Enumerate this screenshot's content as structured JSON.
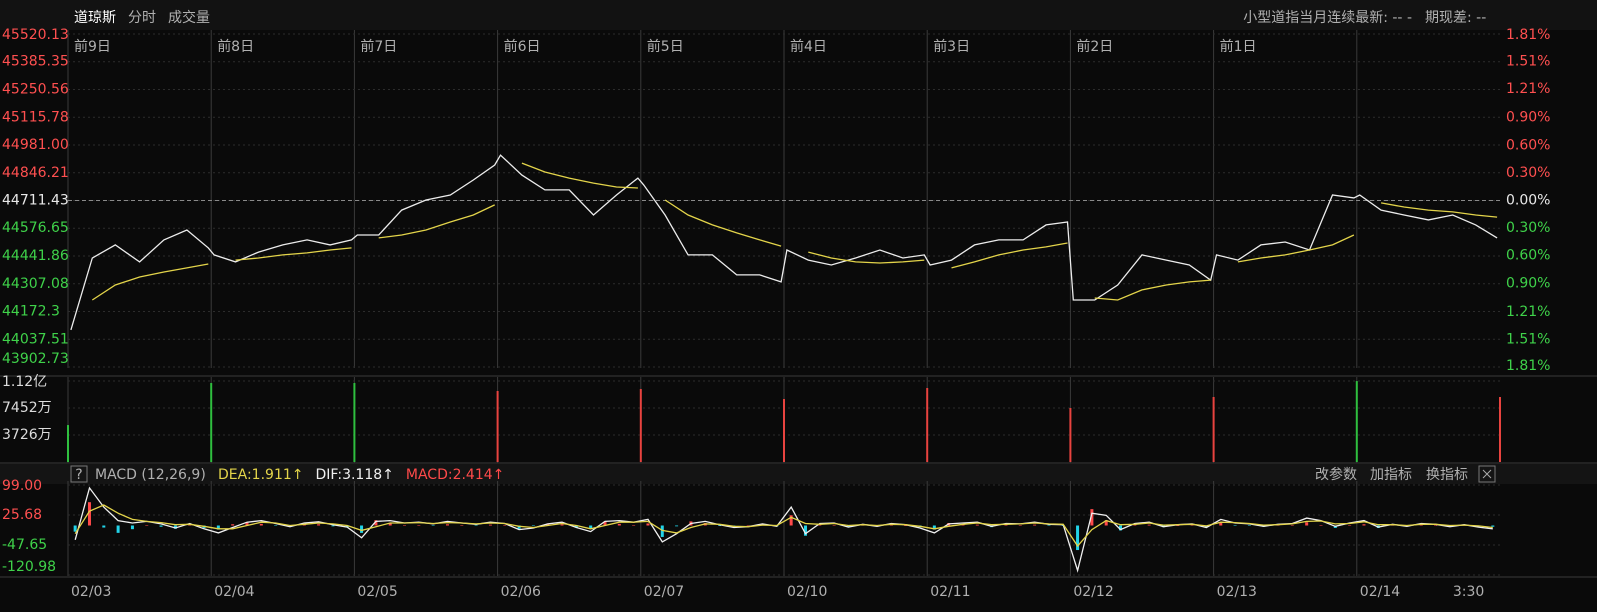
{
  "toolbar": {
    "tabs": [
      "道琼斯",
      "分时",
      "成交量"
    ],
    "contract": "小型道指当月连续最新: --  -",
    "basis": "期现差: --"
  },
  "indicator_bar": {
    "help": "?",
    "buttons": [
      "改参数",
      "加指标",
      "换指标"
    ]
  },
  "chart_data": [
    {
      "type": "line",
      "xlim": [
        0,
        10
      ],
      "xticks": [
        0,
        1,
        2,
        3,
        4,
        5,
        6,
        7,
        8,
        9
      ],
      "day_labels": [
        "前9日",
        "前8日",
        "前7日",
        "前6日",
        "前5日",
        "前4日",
        "前3日",
        "前2日",
        "前1日"
      ],
      "ylim": [
        43902.73,
        45520.13
      ],
      "yticks": [
        45520.13,
        45385.35,
        45250.56,
        45115.78,
        {
          "value": 44981,
          "label": "44981.00"
        },
        44846.21,
        44711.43,
        44576.65,
        44441.86,
        44307.08,
        44172.3,
        44037.51,
        43902.73
      ],
      "y2lim": [
        -1.81,
        1.81
      ],
      "y2ticks": [
        {
          "value": 1.81,
          "label": "1.81%"
        },
        {
          "value": 1.51,
          "label": "1.51%"
        },
        {
          "value": 1.21,
          "label": "1.21%"
        },
        {
          "value": 0.9,
          "label": "0.90%"
        },
        {
          "value": 0.6,
          "label": "0.60%"
        },
        {
          "value": 0.3,
          "label": "0.30%"
        },
        {
          "value": 0,
          "label": "0.00%"
        },
        {
          "value": -0.3,
          "label": "0.30%"
        },
        {
          "value": -0.6,
          "label": "0.60%"
        },
        {
          "value": -0.9,
          "label": "0.90%"
        },
        {
          "value": -1.21,
          "label": "1.21%"
        },
        {
          "value": -1.51,
          "label": "1.51%"
        },
        {
          "value": -1.81,
          "label": "1.81%"
        }
      ],
      "reference_line": 44711.43,
      "tick_up_color": "#ff5050",
      "tick_down_color": "#3fd24a",
      "tick_ref_color": "#e8e8e8",
      "grid": true,
      "x": [
        0.02,
        0.17,
        0.33,
        0.5,
        0.67,
        0.83,
        0.98,
        1.02,
        1.17,
        1.33,
        1.5,
        1.67,
        1.83,
        1.98,
        2.02,
        2.17,
        2.33,
        2.5,
        2.67,
        2.83,
        2.98,
        3.02,
        3.17,
        3.33,
        3.5,
        3.67,
        3.83,
        3.98,
        4.02,
        4.17,
        4.33,
        4.5,
        4.67,
        4.83,
        4.98,
        5.02,
        5.17,
        5.33,
        5.5,
        5.67,
        5.83,
        5.98,
        6.02,
        6.17,
        6.33,
        6.5,
        6.67,
        6.83,
        6.98,
        7.02,
        7.17,
        7.33,
        7.5,
        7.67,
        7.83,
        7.98,
        8.02,
        8.17,
        8.33,
        8.5,
        8.67,
        8.83,
        8.98,
        9.02,
        9.17,
        9.33,
        9.5,
        9.67,
        9.83,
        9.98
      ],
      "series": [
        {
          "color": "#ececec",
          "values": [
            44083,
            44432,
            44496,
            44413,
            44520,
            44568,
            44481,
            44447,
            44413,
            44461,
            44496,
            44520,
            44496,
            44520,
            44544,
            44544,
            44665,
            44714,
            44738,
            44811,
            44884,
            44932,
            44835,
            44763,
            44763,
            44641,
            44738,
            44820,
            44787,
            44641,
            44447,
            44447,
            44350,
            44350,
            44316,
            44471,
            44422,
            44398,
            44432,
            44471,
            44432,
            44447,
            44398,
            44422,
            44496,
            44520,
            44520,
            44593,
            44607,
            44228,
            44228,
            44301,
            44447,
            44422,
            44398,
            44325,
            44447,
            44422,
            44496,
            44510,
            44471,
            44738,
            44724,
            44738,
            44665,
            44641,
            44617,
            44641,
            44593,
            44530
          ]
        },
        {
          "color": "#e3d44a",
          "values": [
            null,
            44228,
            44301,
            44340,
            44364,
            44384,
            44403,
            null,
            44422,
            44432,
            44447,
            44457,
            44471,
            44481,
            null,
            44530,
            44544,
            44568,
            44607,
            44641,
            44690,
            null,
            44893,
            44850,
            44820,
            44796,
            44777,
            44772,
            null,
            44714,
            44641,
            44593,
            44554,
            44520,
            44490,
            null,
            44461,
            44432,
            44413,
            44408,
            44413,
            44422,
            null,
            44384,
            44413,
            44447,
            44471,
            44486,
            44505,
            null,
            44238,
            44228,
            44277,
            44301,
            44316,
            44325,
            null,
            44413,
            44432,
            44447,
            44471,
            44496,
            44544,
            null,
            44700,
            44680,
            44665,
            44656,
            44641,
            44631
          ]
        }
      ]
    },
    {
      "type": "bar",
      "xlim": [
        0,
        10
      ],
      "ylim": [
        0,
        111780000
      ],
      "yticks": [
        {
          "value": 111780000,
          "label": "1.12亿"
        },
        {
          "value": 74520000,
          "label": "7452万"
        },
        {
          "value": 37260000,
          "label": "3726万"
        }
      ],
      "tick_color": "#dcdcdc",
      "x": [
        0,
        1,
        2,
        3,
        4,
        5,
        6,
        7,
        8,
        9,
        10
      ],
      "values": [
        51000000,
        109000000,
        109000000,
        98000000,
        100700000,
        86900000,
        102100000,
        74500000,
        89700000,
        111700000,
        89700000
      ],
      "colors": [
        "#2fbf3f",
        "#2fbf3f",
        "#2fbf3f",
        "#e8433f",
        "#e8433f",
        "#e8433f",
        "#e8433f",
        "#e8433f",
        "#e8433f",
        "#2fbf3f",
        "#e8433f"
      ]
    },
    {
      "type": "line",
      "title": "MACD (12,26,9)",
      "xlim": [
        0,
        10
      ],
      "xticks": [
        {
          "value": 0,
          "label": "02/03"
        },
        {
          "value": 1,
          "label": "02/04"
        },
        {
          "value": 2,
          "label": "02/05"
        },
        {
          "value": 3,
          "label": "02/06"
        },
        {
          "value": 4,
          "label": "02/07"
        },
        {
          "value": 5,
          "label": "02/10"
        },
        {
          "value": 6,
          "label": "02/11"
        },
        {
          "value": 7,
          "label": "02/12"
        },
        {
          "value": 8,
          "label": "02/13"
        },
        {
          "value": 9,
          "label": "02/14"
        },
        {
          "value": 9.65,
          "label": "3:30"
        }
      ],
      "ylim": [
        -120.98,
        99
      ],
      "yticks": [
        {
          "value": 99,
          "label": "99.00"
        },
        25.68,
        -47.65,
        -120.98
      ],
      "tick_up_color": "#ff5050",
      "tick_down_color": "#3fd24a",
      "x": [
        0.05,
        0.15,
        0.25,
        0.35,
        0.45,
        0.55,
        0.65,
        0.75,
        0.85,
        0.95,
        1.05,
        1.15,
        1.25,
        1.35,
        1.45,
        1.55,
        1.65,
        1.75,
        1.85,
        1.95,
        2.05,
        2.15,
        2.25,
        2.35,
        2.45,
        2.55,
        2.65,
        2.75,
        2.85,
        2.95,
        3.05,
        3.15,
        3.25,
        3.35,
        3.45,
        3.55,
        3.65,
        3.75,
        3.85,
        3.95,
        4.05,
        4.15,
        4.25,
        4.35,
        4.45,
        4.55,
        4.65,
        4.75,
        4.85,
        4.95,
        5.05,
        5.15,
        5.25,
        5.35,
        5.45,
        5.55,
        5.65,
        5.75,
        5.85,
        5.95,
        6.05,
        6.15,
        6.25,
        6.35,
        6.45,
        6.55,
        6.65,
        6.75,
        6.85,
        6.95,
        7.05,
        7.15,
        7.25,
        7.35,
        7.45,
        7.55,
        7.65,
        7.75,
        7.85,
        7.95,
        8.05,
        8.15,
        8.25,
        8.35,
        8.45,
        8.55,
        8.65,
        8.75,
        8.85,
        8.95,
        9.05,
        9.15,
        9.25,
        9.35,
        9.45,
        9.55,
        9.65,
        9.75,
        9.85,
        9.95
      ],
      "series": [
        {
          "name": "MACD:2.414↑",
          "style": "histogram",
          "color": "#ff4a4a",
          "down_color": "#22d3e8",
          "values": [
            -15,
            57,
            -5,
            -18,
            -9,
            0,
            -3,
            -8,
            2,
            -6,
            -10,
            3,
            8,
            4,
            -1,
            -3,
            3,
            3,
            -2,
            -4,
            -18,
            13,
            6,
            0,
            1,
            -1,
            3,
            0,
            -1,
            2,
            0,
            -8,
            -1,
            4,
            3,
            -5,
            -7,
            10,
            4,
            0,
            5,
            -28,
            -2,
            10,
            6,
            -1,
            -3,
            0,
            3,
            -2,
            25,
            -25,
            2,
            1,
            -4,
            1,
            -2,
            2,
            0,
            -4,
            -10,
            6,
            3,
            2,
            -4,
            2,
            0,
            2,
            -1,
            -1,
            -60,
            40,
            13,
            -12,
            2,
            2,
            -4,
            0,
            1,
            -4,
            7,
            -1,
            -1,
            -3,
            1,
            1,
            8,
            1,
            -6,
            1,
            3,
            -6,
            1,
            -2,
            2,
            0,
            -3,
            1,
            -3,
            -3
          ]
        },
        {
          "name": "DIF:3.118↑",
          "color": "#f0f0f0",
          "values": [
            -35,
            92,
            45,
            12,
            6,
            10,
            4,
            -6,
            5,
            -8,
            -18,
            -5,
            8,
            12,
            5,
            -3,
            6,
            9,
            2,
            -4,
            -30,
            10,
            12,
            6,
            8,
            4,
            10,
            6,
            3,
            8,
            5,
            -10,
            -6,
            4,
            8,
            -5,
            -15,
            10,
            12,
            8,
            15,
            -40,
            -20,
            5,
            10,
            2,
            -5,
            -3,
            4,
            -2,
            45,
            -20,
            5,
            6,
            -4,
            3,
            -2,
            5,
            2,
            -6,
            -18,
            4,
            6,
            8,
            -2,
            5,
            4,
            8,
            3,
            2,
            -110,
            30,
            25,
            -10,
            5,
            8,
            -3,
            2,
            4,
            -5,
            15,
            6,
            4,
            -2,
            3,
            5,
            18,
            12,
            -2,
            6,
            12,
            -4,
            3,
            -2,
            5,
            3,
            -3,
            2,
            -4,
            -8
          ]
        },
        {
          "name": "DEA:1.911↑",
          "color": "#e3d44a",
          "values": [
            -20,
            35,
            50,
            30,
            15,
            10,
            7,
            2,
            3,
            -2,
            -8,
            -8,
            0,
            8,
            6,
            0,
            3,
            6,
            4,
            0,
            -12,
            -3,
            6,
            6,
            7,
            5,
            7,
            6,
            4,
            6,
            5,
            -2,
            -5,
            0,
            5,
            0,
            -8,
            0,
            8,
            8,
            10,
            -12,
            -18,
            -5,
            4,
            3,
            -2,
            -3,
            1,
            0,
            20,
            5,
            3,
            5,
            0,
            2,
            0,
            3,
            2,
            -2,
            -8,
            -2,
            3,
            6,
            2,
            3,
            4,
            6,
            4,
            3,
            -50,
            -10,
            12,
            2,
            3,
            6,
            1,
            2,
            3,
            -1,
            8,
            7,
            5,
            1,
            2,
            4,
            10,
            11,
            4,
            5,
            9,
            2,
            2,
            0,
            3,
            3,
            0,
            1,
            -1,
            -5
          ]
        }
      ]
    }
  ]
}
